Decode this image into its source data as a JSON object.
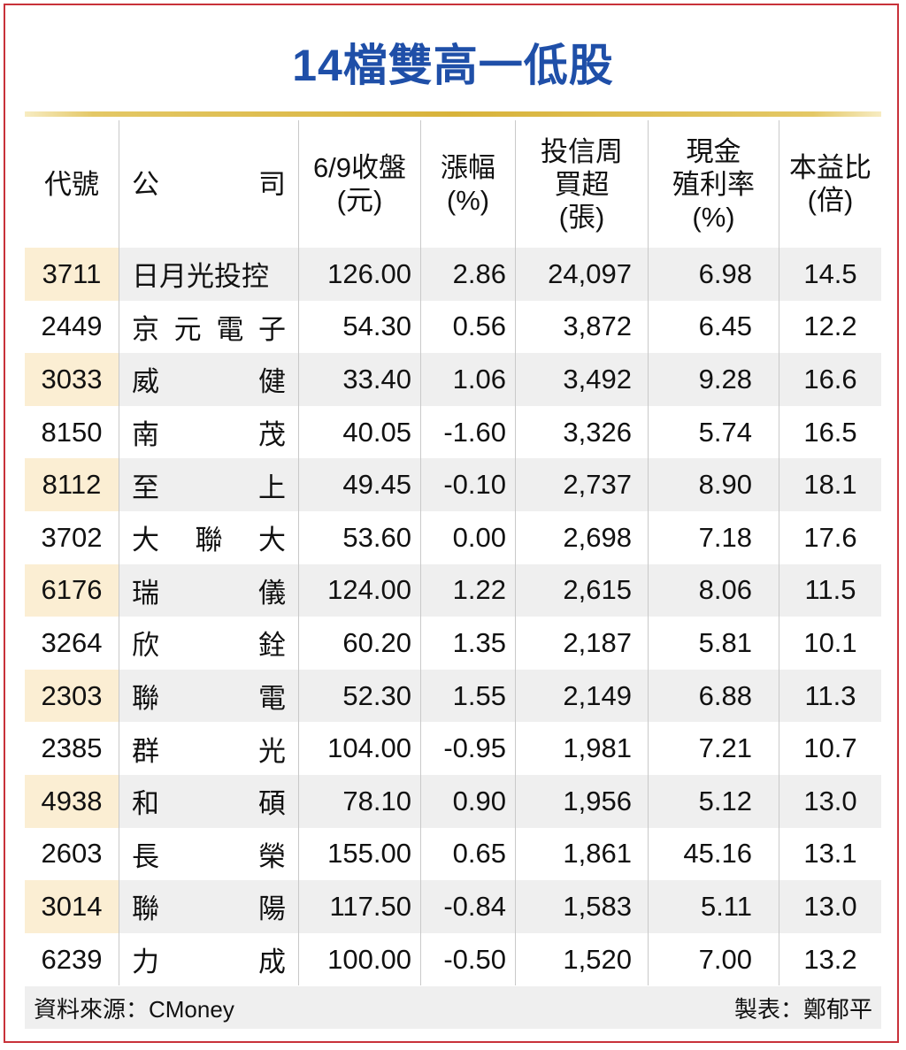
{
  "title": "14檔雙高一低股",
  "headers": {
    "code": "代號",
    "name_chars": [
      "公",
      "司"
    ],
    "close": [
      "6/9收盤",
      "(元)"
    ],
    "chg": [
      "漲幅",
      "(%)"
    ],
    "buy": [
      "投信周",
      "買超",
      "(張)"
    ],
    "yield": [
      "現金",
      "殖利率",
      "(%)"
    ],
    "pe": [
      "本益比",
      "(倍)"
    ]
  },
  "rows": [
    {
      "code": "3711",
      "name": [
        "日月光投控"
      ],
      "close": "126.00",
      "chg": "2.86",
      "buy": "24,097",
      "yield": "6.98",
      "pe": "14.5"
    },
    {
      "code": "2449",
      "name": [
        "京",
        "元",
        "電",
        "子"
      ],
      "close": "54.30",
      "chg": "0.56",
      "buy": "3,872",
      "yield": "6.45",
      "pe": "12.2"
    },
    {
      "code": "3033",
      "name": [
        "威",
        "健"
      ],
      "close": "33.40",
      "chg": "1.06",
      "buy": "3,492",
      "yield": "9.28",
      "pe": "16.6"
    },
    {
      "code": "8150",
      "name": [
        "南",
        "茂"
      ],
      "close": "40.05",
      "chg": "-1.60",
      "buy": "3,326",
      "yield": "5.74",
      "pe": "16.5"
    },
    {
      "code": "8112",
      "name": [
        "至",
        "上"
      ],
      "close": "49.45",
      "chg": "-0.10",
      "buy": "2,737",
      "yield": "8.90",
      "pe": "18.1"
    },
    {
      "code": "3702",
      "name": [
        "大",
        "聯",
        "大"
      ],
      "close": "53.60",
      "chg": "0.00",
      "buy": "2,698",
      "yield": "7.18",
      "pe": "17.6"
    },
    {
      "code": "6176",
      "name": [
        "瑞",
        "儀"
      ],
      "close": "124.00",
      "chg": "1.22",
      "buy": "2,615",
      "yield": "8.06",
      "pe": "11.5"
    },
    {
      "code": "3264",
      "name": [
        "欣",
        "銓"
      ],
      "close": "60.20",
      "chg": "1.35",
      "buy": "2,187",
      "yield": "5.81",
      "pe": "10.1"
    },
    {
      "code": "2303",
      "name": [
        "聯",
        "電"
      ],
      "close": "52.30",
      "chg": "1.55",
      "buy": "2,149",
      "yield": "6.88",
      "pe": "11.3"
    },
    {
      "code": "2385",
      "name": [
        "群",
        "光"
      ],
      "close": "104.00",
      "chg": "-0.95",
      "buy": "1,981",
      "yield": "7.21",
      "pe": "10.7"
    },
    {
      "code": "4938",
      "name": [
        "和",
        "碩"
      ],
      "close": "78.10",
      "chg": "0.90",
      "buy": "1,956",
      "yield": "5.12",
      "pe": "13.0"
    },
    {
      "code": "2603",
      "name": [
        "長",
        "榮"
      ],
      "close": "155.00",
      "chg": "0.65",
      "buy": "1,861",
      "yield": "45.16",
      "pe": "13.1"
    },
    {
      "code": "3014",
      "name": [
        "聯",
        "陽"
      ],
      "close": "117.50",
      "chg": "-0.84",
      "buy": "1,583",
      "yield": "5.11",
      "pe": "13.0"
    },
    {
      "code": "6239",
      "name": [
        "力",
        "成"
      ],
      "close": "100.00",
      "chg": "-0.50",
      "buy": "1,520",
      "yield": "7.00",
      "pe": "13.2"
    }
  ],
  "footer": {
    "source": "資料來源：CMoney",
    "credit": "製表：鄭郁平"
  }
}
